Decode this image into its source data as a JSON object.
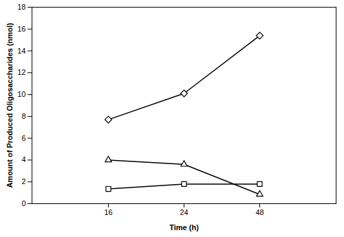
{
  "chart_data": {
    "type": "line",
    "categories": [
      "16",
      "24",
      "48"
    ],
    "series": [
      {
        "color": "#000000",
        "marker": "diamond",
        "line_style": "solid",
        "values": [
          7.7,
          10.1,
          15.4
        ]
      },
      {
        "color": "#000000",
        "marker": "triangle",
        "line_style": "solid",
        "values": [
          4.0,
          3.6,
          0.85
        ]
      },
      {
        "color": "#000000",
        "marker": "square",
        "line_style": "solid",
        "values": [
          1.35,
          1.8,
          1.8
        ]
      }
    ],
    "x_label": "Time (h)",
    "y_label": "Amount of Produced Oligosaccharides (nmol)",
    "ylim": [
      0,
      18
    ],
    "yticks": [
      0,
      2,
      4,
      6,
      8,
      10,
      12,
      14,
      16,
      18
    ],
    "grid": false
  }
}
